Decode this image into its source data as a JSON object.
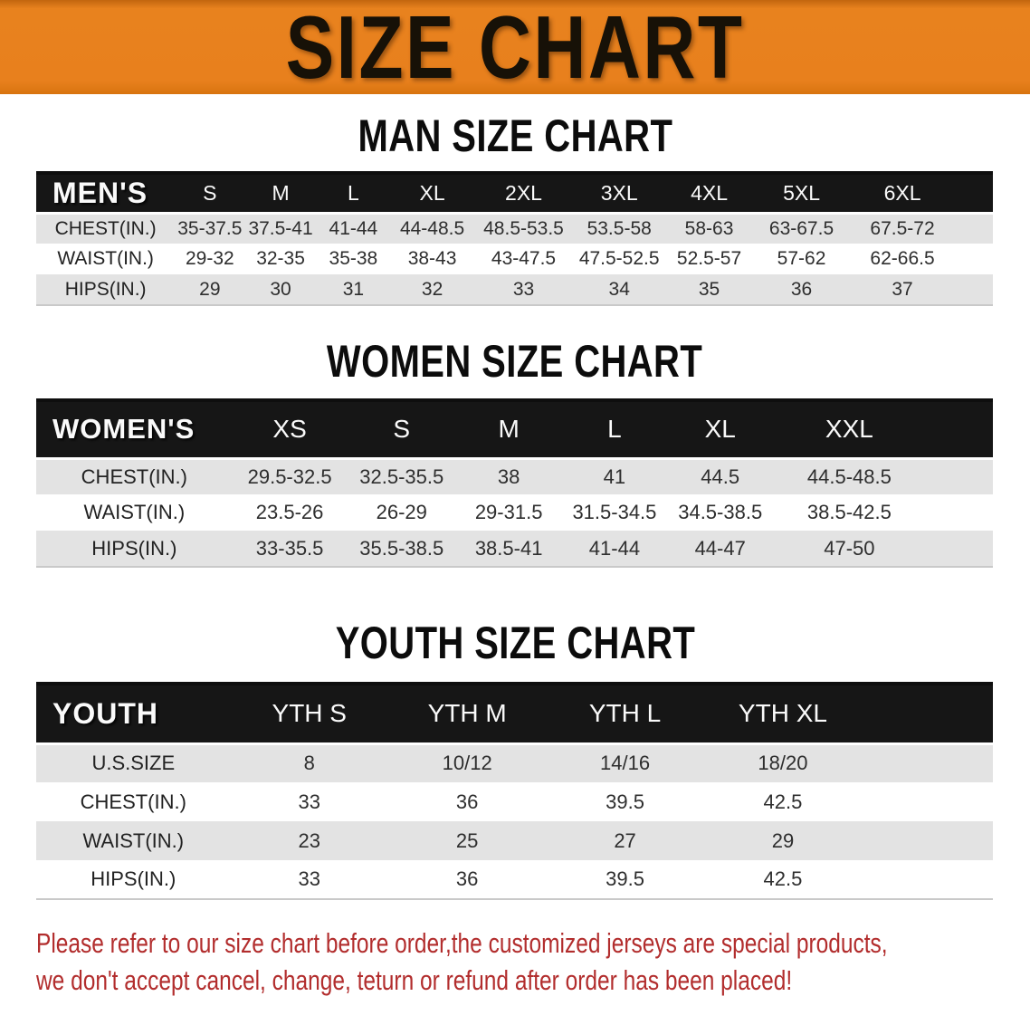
{
  "banner": {
    "title": "SIZE CHART"
  },
  "colors": {
    "banner_orange": "#e8801d",
    "header_bar_black": "#161616",
    "row_shade_gray": "#e3e3e3",
    "disclaimer_red": "#b22d2d",
    "heading_black": "#0c0c0c"
  },
  "tables": {
    "men": {
      "heading": "MAN SIZE CHART",
      "label": "MEN'S",
      "columns": [
        "S",
        "M",
        "L",
        "XL",
        "2XL",
        "3XL",
        "4XL",
        "5XL",
        "6XL"
      ],
      "rows": [
        {
          "label": "CHEST(IN.)",
          "values": [
            "35-37.5",
            "37.5-41",
            "41-44",
            "44-48.5",
            "48.5-53.5",
            "53.5-58",
            "58-63",
            "63-67.5",
            "67.5-72"
          ]
        },
        {
          "label": "WAIST(IN.)",
          "values": [
            "29-32",
            "32-35",
            "35-38",
            "38-43",
            "43-47.5",
            "47.5-52.5",
            "52.5-57",
            "57-62",
            "62-66.5"
          ]
        },
        {
          "label": "HIPS(IN.)",
          "values": [
            "29",
            "30",
            "31",
            "32",
            "33",
            "34",
            "35",
            "36",
            "37"
          ]
        }
      ]
    },
    "women": {
      "heading": "WOMEN SIZE CHART",
      "label": "WOMEN'S",
      "columns": [
        "XS",
        "S",
        "M",
        "L",
        "XL",
        "XXL"
      ],
      "rows": [
        {
          "label": "CHEST(IN.)",
          "values": [
            "29.5-32.5",
            "32.5-35.5",
            "38",
            "41",
            "44.5",
            "44.5-48.5"
          ]
        },
        {
          "label": "WAIST(IN.)",
          "values": [
            "23.5-26",
            "26-29",
            "29-31.5",
            "31.5-34.5",
            "34.5-38.5",
            "38.5-42.5"
          ]
        },
        {
          "label": "HIPS(IN.)",
          "values": [
            "33-35.5",
            "35.5-38.5",
            "38.5-41",
            "41-44",
            "44-47",
            "47-50"
          ]
        }
      ]
    },
    "youth": {
      "heading": "YOUTH SIZE CHART",
      "label": "YOUTH",
      "columns": [
        "YTH S",
        "YTH M",
        "YTH L",
        "YTH XL"
      ],
      "rows": [
        {
          "label": "U.S.SIZE",
          "values": [
            "8",
            "10/12",
            "14/16",
            "18/20"
          ]
        },
        {
          "label": "CHEST(IN.)",
          "values": [
            "33",
            "36",
            "39.5",
            "42.5"
          ]
        },
        {
          "label": "WAIST(IN.)",
          "values": [
            "23",
            "25",
            "27",
            "29"
          ]
        },
        {
          "label": "HIPS(IN.)",
          "values": [
            "33",
            "36",
            "39.5",
            "42.5"
          ]
        }
      ]
    }
  },
  "disclaimer": {
    "line1": "Please refer to our size chart before order,the customized jerseys are special products,",
    "line2": "we don't accept cancel, change, teturn or refund after order has been placed!"
  }
}
